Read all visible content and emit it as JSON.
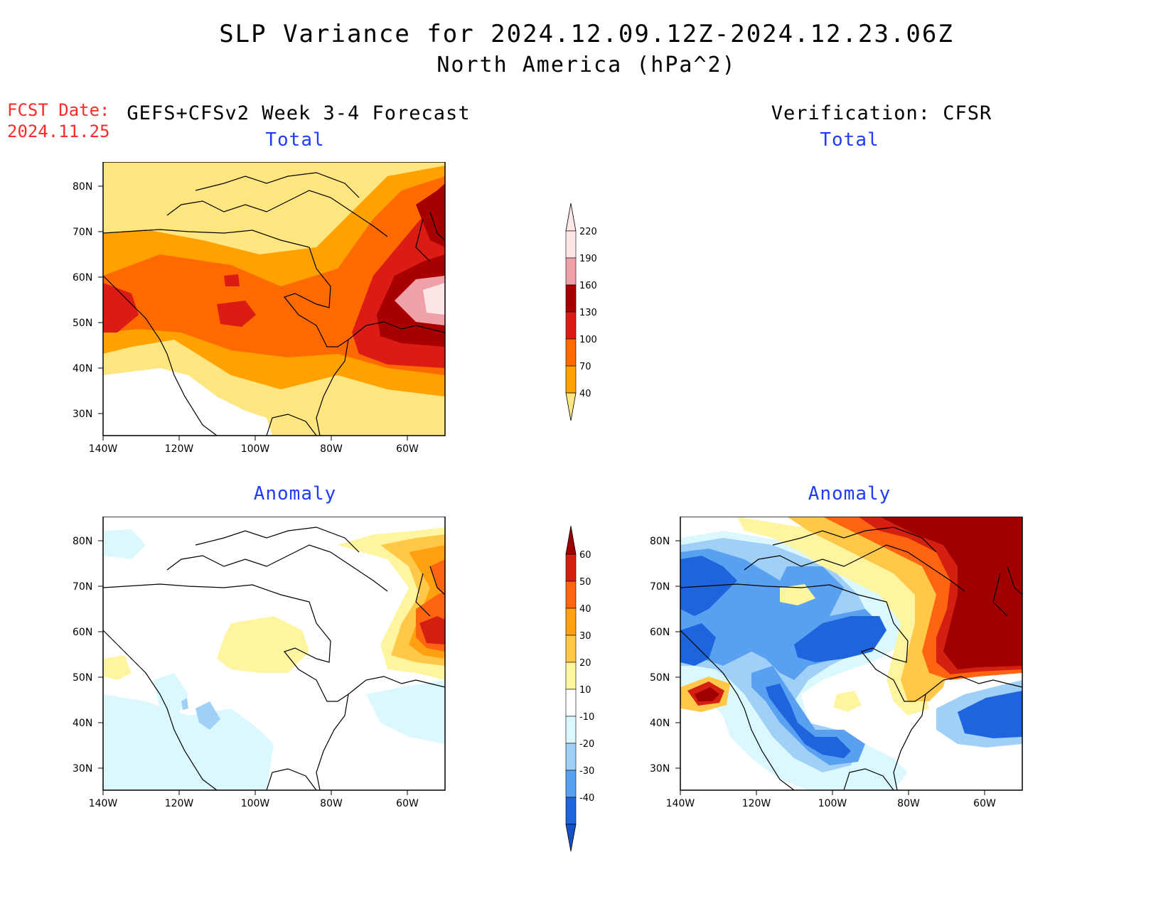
{
  "title": "SLP Variance for 2024.12.09.12Z-2024.12.23.06Z",
  "subtitle": "North America (hPa^2)",
  "fcst_date_label": "FCST Date:",
  "fcst_date_value": "2024.11.25",
  "left_column_title": "GEFS+CFSv2 Week 3-4 Forecast",
  "right_column_title": "Verification: CFSR",
  "panels": {
    "fcst_total": {
      "title": "Total"
    },
    "fcst_anomaly": {
      "title": "Anomaly"
    },
    "verif_total": {
      "title": "Total"
    },
    "verif_anomaly": {
      "title": "Anomaly"
    }
  },
  "axes": {
    "lon_ticks": [
      "140W",
      "120W",
      "100W",
      "80W",
      "60W"
    ],
    "lat_ticks": [
      "80N",
      "70N",
      "60N",
      "50N",
      "40N",
      "30N"
    ]
  },
  "total_colorbar": {
    "levels": [
      "220",
      "190",
      "160",
      "130",
      "100",
      "70",
      "40"
    ],
    "colors": [
      "#ffe6e6",
      "#f0a0a8",
      "#a80000",
      "#dc1c14",
      "#ff6a00",
      "#ffa200",
      "#ffe680"
    ]
  },
  "anomaly_colorbar": {
    "levels": [
      "60",
      "50",
      "40",
      "30",
      "20",
      "10",
      "-10",
      "-20",
      "-30",
      "-40"
    ],
    "colors": [
      "#a00000",
      "#d42010",
      "#ff6410",
      "#ffa010",
      "#ffc848",
      "#fff5a0",
      "#ffffff",
      "#dcf8ff",
      "#a0d0f8",
      "#5aa0f0",
      "#1e64dc",
      "#1450c8"
    ]
  },
  "colors": {
    "title_red": "#ff2a2a",
    "panel_title_blue": "#1e3cff"
  }
}
